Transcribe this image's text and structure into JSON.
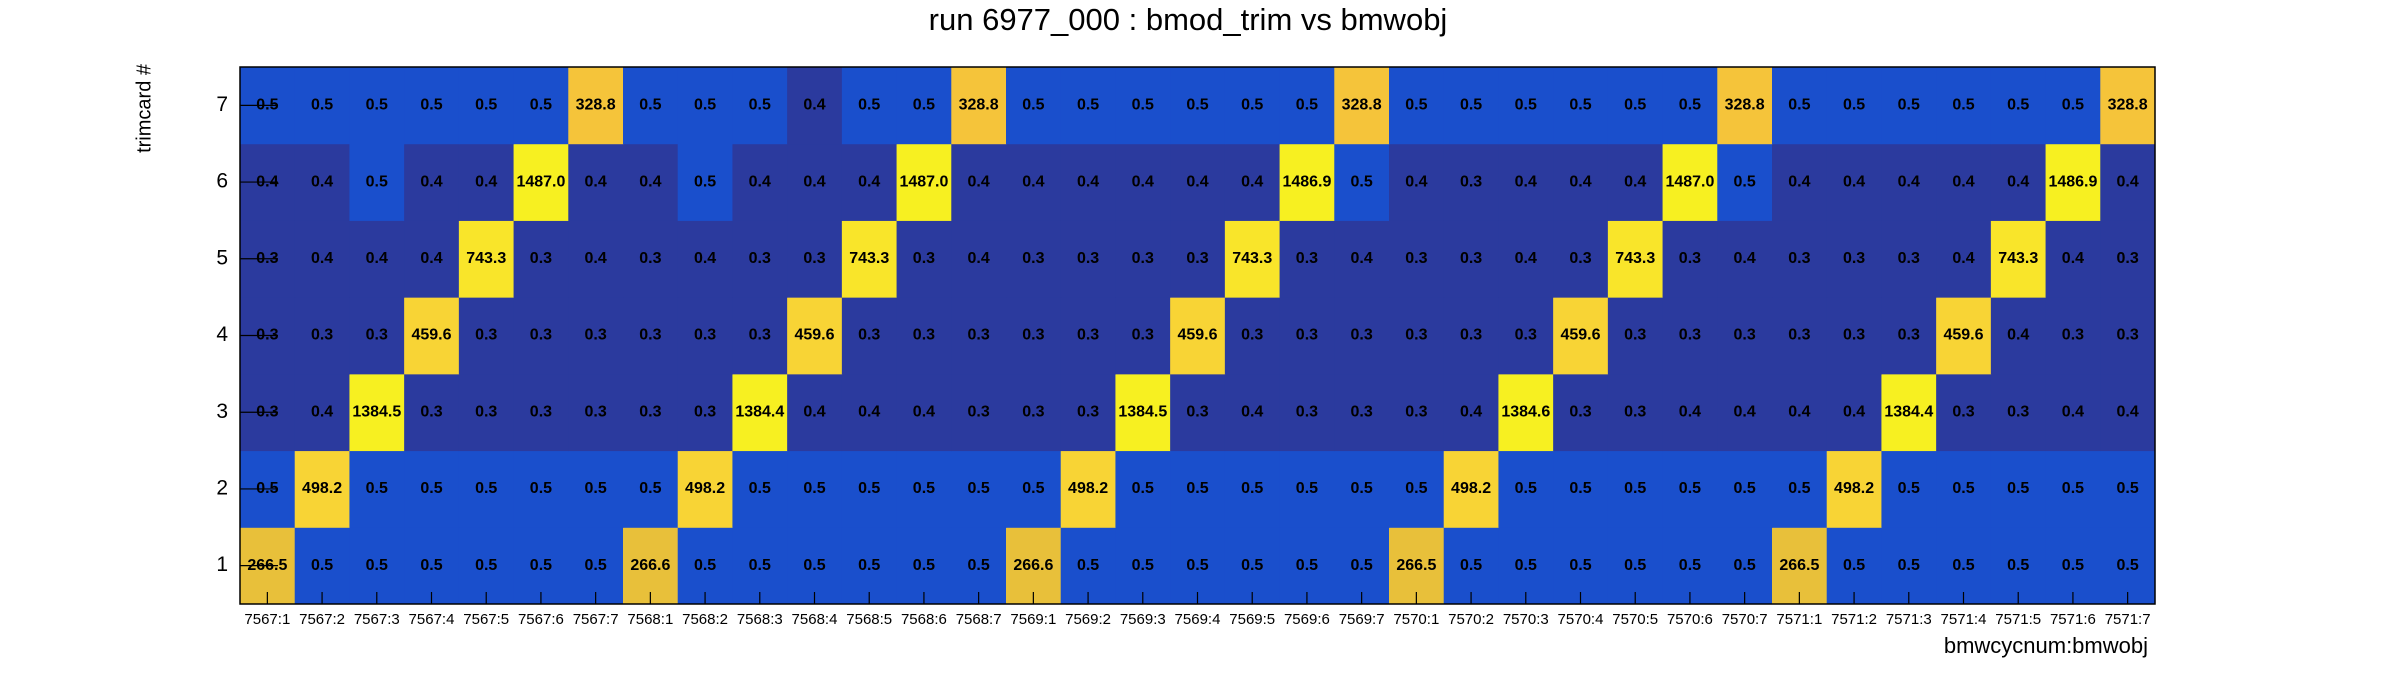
{
  "chart_data": {
    "type": "heatmap",
    "title": "run 6977_000 : bmod_trim vs bmwobj",
    "x_label": "bmwcycnum:bmwobj",
    "y_label": "trimcard #",
    "categories": [
      "7567:1",
      "7567:2",
      "7567:3",
      "7567:4",
      "7567:5",
      "7567:6",
      "7567:7",
      "7568:1",
      "7568:2",
      "7568:3",
      "7568:4",
      "7568:5",
      "7568:6",
      "7568:7",
      "7569:1",
      "7569:2",
      "7569:3",
      "7569:4",
      "7569:5",
      "7569:6",
      "7569:7",
      "7570:1",
      "7570:2",
      "7570:3",
      "7570:4",
      "7570:5",
      "7570:6",
      "7570:7",
      "7571:1",
      "7571:2",
      "7571:3",
      "7571:4",
      "7571:5",
      "7571:6",
      "7571:7"
    ],
    "y_categories": [
      1,
      2,
      3,
      4,
      5,
      6,
      7
    ],
    "values": [
      [
        266.5,
        0.5,
        0.5,
        0.5,
        0.5,
        0.5,
        0.5,
        266.6,
        0.5,
        0.5,
        0.5,
        0.5,
        0.5,
        0.5,
        266.6,
        0.5,
        0.5,
        0.5,
        0.5,
        0.5,
        0.5,
        266.5,
        0.5,
        0.5,
        0.5,
        0.5,
        0.5,
        0.5,
        266.5,
        0.5,
        0.5,
        0.5,
        0.5,
        0.5,
        0.5
      ],
      [
        0.5,
        498.2,
        0.5,
        0.5,
        0.5,
        0.5,
        0.5,
        0.5,
        498.2,
        0.5,
        0.5,
        0.5,
        0.5,
        0.5,
        0.5,
        498.2,
        0.5,
        0.5,
        0.5,
        0.5,
        0.5,
        0.5,
        498.2,
        0.5,
        0.5,
        0.5,
        0.5,
        0.5,
        0.5,
        498.2,
        0.5,
        0.5,
        0.5,
        0.5,
        0.5
      ],
      [
        0.3,
        0.4,
        1384.5,
        0.3,
        0.3,
        0.3,
        0.3,
        0.3,
        0.3,
        1384.4,
        0.4,
        0.4,
        0.4,
        0.3,
        0.3,
        0.3,
        1384.5,
        0.3,
        0.4,
        0.3,
        0.3,
        0.3,
        0.4,
        1384.6,
        0.3,
        0.3,
        0.4,
        0.4,
        0.4,
        0.4,
        1384.4,
        0.3,
        0.3,
        0.4,
        0.4
      ],
      [
        0.3,
        0.3,
        0.3,
        459.6,
        0.3,
        0.3,
        0.3,
        0.3,
        0.3,
        0.3,
        459.6,
        0.3,
        0.3,
        0.3,
        0.3,
        0.3,
        0.3,
        459.6,
        0.3,
        0.3,
        0.3,
        0.3,
        0.3,
        0.3,
        459.6,
        0.3,
        0.3,
        0.3,
        0.3,
        0.3,
        0.3,
        459.6,
        0.4,
        0.3,
        0.3
      ],
      [
        0.3,
        0.4,
        0.4,
        0.4,
        743.3,
        0.3,
        0.4,
        0.3,
        0.4,
        0.3,
        0.3,
        743.3,
        0.3,
        0.4,
        0.3,
        0.3,
        0.3,
        0.3,
        743.3,
        0.3,
        0.4,
        0.3,
        0.3,
        0.4,
        0.3,
        743.3,
        0.3,
        0.4,
        0.3,
        0.3,
        0.3,
        0.4,
        743.3,
        0.4,
        0.3
      ],
      [
        0.4,
        0.4,
        0.5,
        0.4,
        0.4,
        1487.0,
        0.4,
        0.4,
        0.5,
        0.4,
        0.4,
        0.4,
        1487.0,
        0.4,
        0.4,
        0.4,
        0.4,
        0.4,
        0.4,
        1486.9,
        0.5,
        0.4,
        0.3,
        0.4,
        0.4,
        0.4,
        1487.0,
        0.5,
        0.4,
        0.4,
        0.4,
        0.4,
        0.4,
        1486.9,
        0.4
      ],
      [
        0.5,
        0.5,
        0.5,
        0.5,
        0.5,
        0.5,
        328.8,
        0.5,
        0.5,
        0.5,
        0.4,
        0.5,
        0.5,
        328.8,
        0.5,
        0.5,
        0.5,
        0.5,
        0.5,
        0.5,
        328.8,
        0.5,
        0.5,
        0.5,
        0.5,
        0.5,
        0.5,
        328.8,
        0.5,
        0.5,
        0.5,
        0.5,
        0.5,
        0.5,
        328.8
      ]
    ],
    "value_labels": [
      [
        "266.5",
        "0.5",
        "0.5",
        "0.5",
        "0.5",
        "0.5",
        "0.5",
        "266.6",
        "0.5",
        "0.5",
        "0.5",
        "0.5",
        "0.5",
        "0.5",
        "266.6",
        "0.5",
        "0.5",
        "0.5",
        "0.5",
        "0.5",
        "0.5",
        "266.5",
        "0.5",
        "0.5",
        "0.5",
        "0.5",
        "0.5",
        "0.5",
        "266.5",
        "0.5",
        "0.5",
        "0.5",
        "0.5",
        "0.5",
        "0.5"
      ],
      [
        "0.5",
        "498.2",
        "0.5",
        "0.5",
        "0.5",
        "0.5",
        "0.5",
        "0.5",
        "498.2",
        "0.5",
        "0.5",
        "0.5",
        "0.5",
        "0.5",
        "0.5",
        "498.2",
        "0.5",
        "0.5",
        "0.5",
        "0.5",
        "0.5",
        "0.5",
        "498.2",
        "0.5",
        "0.5",
        "0.5",
        "0.5",
        "0.5",
        "0.5",
        "498.2",
        "0.5",
        "0.5",
        "0.5",
        "0.5",
        "0.5"
      ],
      [
        "0.3",
        "0.4",
        "1384.5",
        "0.3",
        "0.3",
        "0.3",
        "0.3",
        "0.3",
        "0.3",
        "1384.4",
        "0.4",
        "0.4",
        "0.4",
        "0.3",
        "0.3",
        "0.3",
        "1384.5",
        "0.3",
        "0.4",
        "0.3",
        "0.3",
        "0.3",
        "0.4",
        "1384.6",
        "0.3",
        "0.3",
        "0.4",
        "0.4",
        "0.4",
        "0.4",
        "1384.4",
        "0.3",
        "0.3",
        "0.4",
        "0.4"
      ],
      [
        "0.3",
        "0.3",
        "0.3",
        "459.6",
        "0.3",
        "0.3",
        "0.3",
        "0.3",
        "0.3",
        "0.3",
        "459.6",
        "0.3",
        "0.3",
        "0.3",
        "0.3",
        "0.3",
        "0.3",
        "459.6",
        "0.3",
        "0.3",
        "0.3",
        "0.3",
        "0.3",
        "0.3",
        "459.6",
        "0.3",
        "0.3",
        "0.3",
        "0.3",
        "0.3",
        "0.3",
        "459.6",
        "0.4",
        "0.3",
        "0.3"
      ],
      [
        "0.3",
        "0.4",
        "0.4",
        "0.4",
        "743.3",
        "0.3",
        "0.4",
        "0.3",
        "0.4",
        "0.3",
        "0.3",
        "743.3",
        "0.3",
        "0.4",
        "0.3",
        "0.3",
        "0.3",
        "0.3",
        "743.3",
        "0.3",
        "0.4",
        "0.3",
        "0.3",
        "0.4",
        "0.3",
        "743.3",
        "0.3",
        "0.4",
        "0.3",
        "0.3",
        "0.3",
        "0.4",
        "743.3",
        "0.4",
        "0.3"
      ],
      [
        "0.4",
        "0.4",
        "0.5",
        "0.4",
        "0.4",
        "1487.0",
        "0.4",
        "0.4",
        "0.5",
        "0.4",
        "0.4",
        "0.4",
        "1487.0",
        "0.4",
        "0.4",
        "0.4",
        "0.4",
        "0.4",
        "0.4",
        "1486.9",
        "0.5",
        "0.4",
        "0.3",
        "0.4",
        "0.4",
        "0.4",
        "1487.0",
        "0.5",
        "0.4",
        "0.4",
        "0.4",
        "0.4",
        "0.4",
        "1486.9",
        "0.4"
      ],
      [
        "0.5",
        "0.5",
        "0.5",
        "0.5",
        "0.5",
        "0.5",
        "328.8",
        "0.5",
        "0.5",
        "0.5",
        "0.4",
        "0.5",
        "0.5",
        "328.8",
        "0.5",
        "0.5",
        "0.5",
        "0.5",
        "0.5",
        "0.5",
        "328.8",
        "0.5",
        "0.5",
        "0.5",
        "0.5",
        "0.5",
        "0.5",
        "328.8",
        "0.5",
        "0.5",
        "0.5",
        "0.5",
        "0.5",
        "0.5",
        "328.8"
      ]
    ],
    "zscale": "log",
    "palette": [
      "#2b3a9e",
      "#1a4fcc",
      "#1a5ad0",
      "#1866d0",
      "#1474cc",
      "#0f84c4",
      "#0a94b8",
      "#14a2a8",
      "#28ae96",
      "#44b884",
      "#62c070",
      "#82c45e",
      "#a2c64e",
      "#bec442",
      "#d6c23c",
      "#e8c03a",
      "#f5c43a",
      "#f8d435",
      "#f9e52a",
      "#f7f021"
    ]
  }
}
